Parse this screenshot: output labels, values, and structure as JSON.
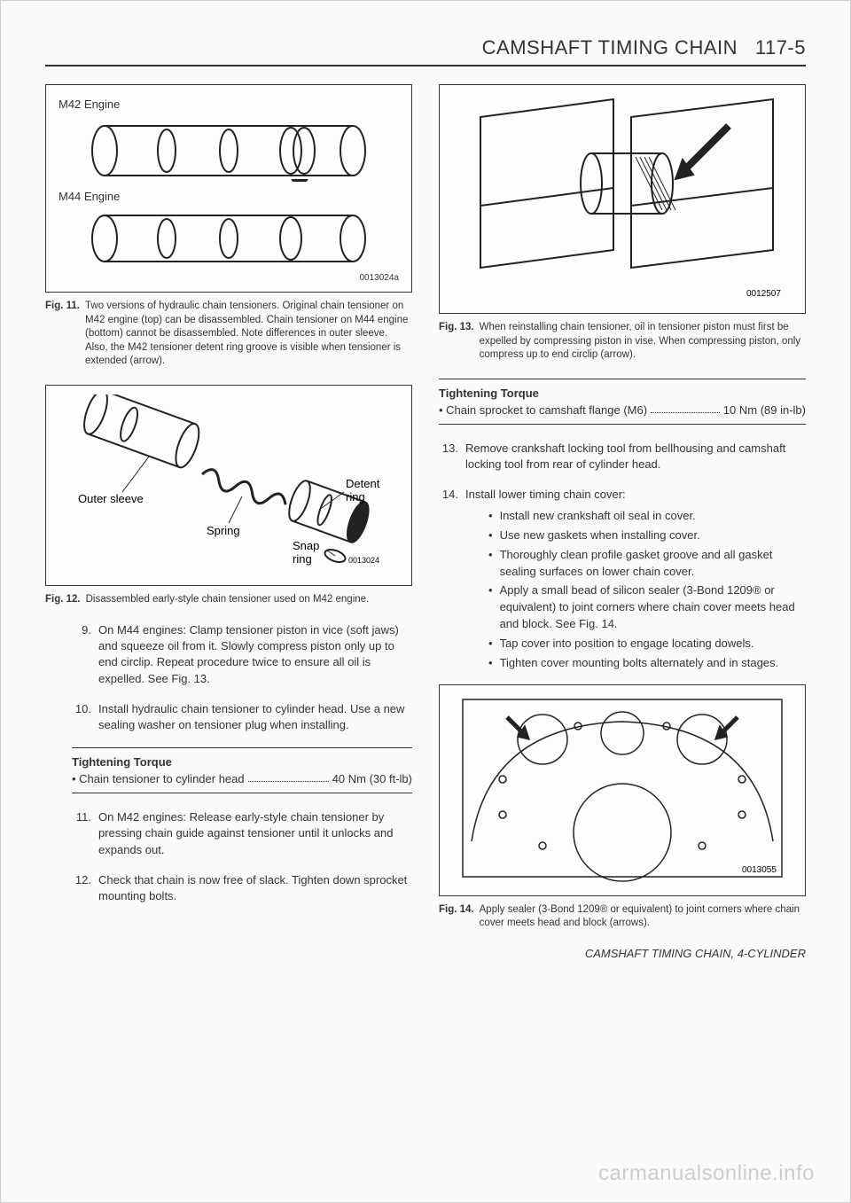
{
  "header": {
    "main": "CAMSHAFT TIMING CHAIN",
    "page": "117-5"
  },
  "fig11": {
    "label_top": "M42 Engine",
    "label_bottom": "M44 Engine",
    "idnum": "0013024a",
    "figno": "Fig. 11.",
    "caption": "Two versions of hydraulic chain tensioners. Original chain tensioner on M42 engine (top) can be disassembled. Chain tensioner on M44 engine (bottom) cannot be disassembled. Note differences in outer sleeve. Also, the M42 tensioner detent ring groove is visible when tensioner is extended (arrow)."
  },
  "fig12": {
    "labels": {
      "outer": "Outer sleeve",
      "spring": "Spring",
      "detent": "Detent ring",
      "snap": "Snap ring"
    },
    "idnum": "0013024",
    "figno": "Fig. 12.",
    "caption": "Disassembled early-style chain tensioner used on M42 engine."
  },
  "fig13": {
    "idnum": "0012507",
    "figno": "Fig. 13.",
    "caption": "When reinstalling chain tensioner, oil in tensioner piston must first be expelled by compressing piston in vise. When compressing piston, only compress up to end circlip (arrow)."
  },
  "fig14": {
    "idnum": "0013055",
    "figno": "Fig. 14.",
    "caption": "Apply sealer (3-Bond 1209® or equivalent) to joint corners where chain cover meets head and block (arrows)."
  },
  "steps_left": {
    "s9": {
      "num": "9.",
      "text": "On M44 engines: Clamp tensioner piston in vice (soft jaws) and squeeze oil from it. Slowly compress piston only up to end circlip. Repeat procedure twice to ensure all oil is expelled. See Fig. 13."
    },
    "s10": {
      "num": "10.",
      "text": "Install hydraulic chain tensioner to cylinder head. Use a new sealing washer on tensioner plug when installing."
    },
    "s11": {
      "num": "11.",
      "text": "On M42 engines: Release early-style chain tensioner by pressing chain guide against tensioner until it unlocks and expands out."
    },
    "s12": {
      "num": "12.",
      "text": "Check that chain is now free of slack. Tighten down sprocket mounting bolts."
    }
  },
  "torque_left": {
    "title": "Tightening Torque",
    "item": "Chain tensioner to cylinder head",
    "value": "40 Nm (30 ft-lb)"
  },
  "torque_right": {
    "title": "Tightening Torque",
    "item": "Chain sprocket to camshaft flange (M6)",
    "value": "10 Nm (89 in-lb)"
  },
  "steps_right": {
    "s13": {
      "num": "13.",
      "text": "Remove crankshaft locking tool from bellhousing and camshaft locking tool from rear of cylinder head."
    },
    "s14": {
      "num": "14.",
      "text": "Install lower timing chain cover:"
    },
    "bullets": [
      "Install new crankshaft oil seal in cover.",
      "Use new gaskets when installing cover.",
      "Thoroughly clean profile gasket groove and all gasket sealing surfaces on lower chain cover.",
      "Apply a small bead of silicon sealer (3-Bond 1209® or equivalent) to joint corners where chain cover meets head and block. See Fig. 14.",
      "Tap cover into position to engage locating dowels.",
      "Tighten cover mounting bolts alternately and in stages."
    ]
  },
  "footer": "CAMSHAFT TIMING CHAIN, 4-CYLINDER",
  "watermark": "carmanualsonline.info"
}
